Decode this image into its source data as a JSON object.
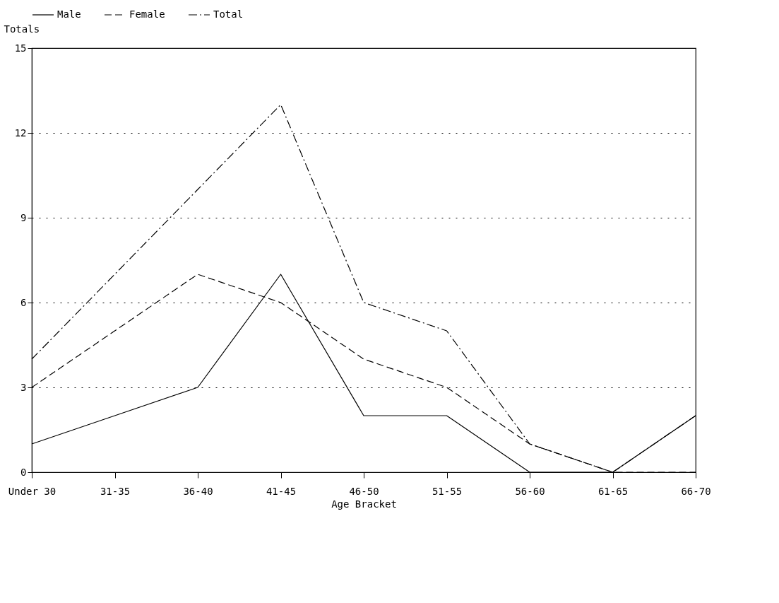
{
  "chart_data": {
    "type": "line",
    "xlabel": "Age Bracket",
    "ylabel": "Totals",
    "categories": [
      "Under 30",
      "31-35",
      "36-40",
      "41-45",
      "46-50",
      "51-55",
      "56-60",
      "61-65",
      "66-70"
    ],
    "series": [
      {
        "name": "Male",
        "color": "#000000",
        "line_style": "solid",
        "values": [
          1,
          2,
          3,
          7,
          2,
          2,
          0,
          0,
          2
        ]
      },
      {
        "name": "Female",
        "color": "#000000",
        "line_style": "dashed",
        "values": [
          3,
          5,
          7,
          6,
          4,
          3,
          1,
          0,
          0
        ]
      },
      {
        "name": "Total",
        "color": "#000000",
        "line_style": "dashdot",
        "values": [
          4,
          7,
          10,
          13,
          6,
          5,
          1,
          0,
          2
        ]
      }
    ],
    "ylim": [
      0,
      15
    ],
    "yticks": [
      0,
      3,
      6,
      9,
      12,
      15
    ],
    "grid": "y",
    "legend": "top left",
    "marker": "none"
  }
}
